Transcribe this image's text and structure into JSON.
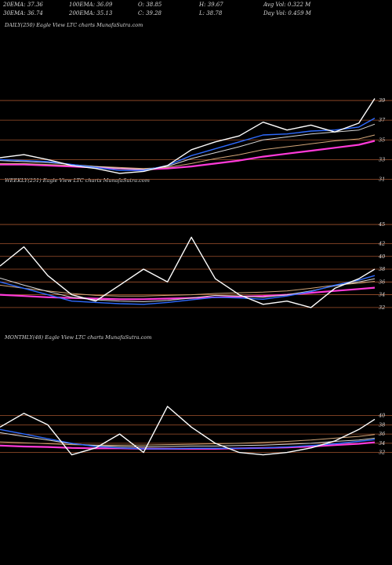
{
  "header": {
    "row1": [
      {
        "label": "20EMA: 37.36"
      },
      {
        "label": "100EMA: 36.09"
      },
      {
        "label": "O: 38.85"
      },
      {
        "label": "H: 39.67"
      },
      {
        "label": "Avg Vol: 0.322  M"
      }
    ],
    "row2": [
      {
        "label": "30EMA: 36.74"
      },
      {
        "label": "200EMA: 35.13"
      },
      {
        "label": "C: 39.28"
      },
      {
        "label": "L: 38.78"
      },
      {
        "label": "Day Vol: 0.459 M"
      }
    ]
  },
  "colors": {
    "background": "#000000",
    "grid": "#a0522d",
    "price": "#ffffff",
    "ema_fast": "#2e6bff",
    "ema_mid": "#d8d8d8",
    "ema_slow": "#d2a679",
    "ema_long": "#ff3ad9"
  },
  "chart_data": [
    {
      "type": "line",
      "title": "DAILY(250) Eagle  View  LTC charts MunafaSutra.com",
      "yticks": [
        "39",
        "37",
        "35",
        "33",
        "31"
      ],
      "ytick_values": [
        39,
        37,
        35,
        33,
        31
      ],
      "ylim": [
        30.4,
        39.8
      ],
      "x": [
        0,
        30,
        60,
        90,
        120,
        150,
        180,
        210,
        240,
        270,
        300,
        330,
        360,
        390,
        420,
        450,
        470
      ],
      "series": [
        {
          "key": "price",
          "values": [
            33.2,
            33.5,
            33.0,
            32.4,
            32.1,
            31.6,
            31.8,
            32.4,
            34.0,
            34.8,
            35.4,
            36.8,
            36.0,
            36.5,
            35.8,
            36.7,
            39.2
          ]
        },
        {
          "key": "ema_fast",
          "values": [
            33.0,
            32.9,
            32.8,
            32.5,
            32.2,
            31.9,
            31.9,
            32.4,
            33.4,
            34.1,
            34.8,
            35.5,
            35.6,
            35.9,
            36.0,
            36.3,
            37.2
          ]
        },
        {
          "key": "ema_mid",
          "values": [
            32.9,
            32.8,
            32.7,
            32.5,
            32.3,
            32.1,
            32.0,
            32.3,
            33.1,
            33.7,
            34.3,
            35.0,
            35.3,
            35.6,
            35.8,
            36.0,
            36.6
          ]
        },
        {
          "key": "ema_slow",
          "values": [
            32.6,
            32.6,
            32.5,
            32.4,
            32.3,
            32.2,
            32.1,
            32.2,
            32.6,
            33.1,
            33.5,
            34.0,
            34.3,
            34.6,
            34.9,
            35.1,
            35.5
          ]
        },
        {
          "key": "ema_long",
          "values": [
            32.5,
            32.5,
            32.4,
            32.3,
            32.2,
            32.1,
            32.0,
            32.1,
            32.3,
            32.6,
            32.9,
            33.3,
            33.6,
            33.9,
            34.2,
            34.5,
            34.9
          ]
        }
      ]
    },
    {
      "type": "line",
      "title": "WEEKLY(251) Eagle  View  LTC charts MunafaSutra.com",
      "yticks": [
        "45",
        "42",
        "40",
        "38",
        "36",
        "34",
        "32"
      ],
      "ytick_values": [
        45,
        42,
        40,
        38,
        36,
        34,
        32
      ],
      "ylim": [
        31.0,
        45.5
      ],
      "x": [
        0,
        30,
        60,
        90,
        120,
        150,
        180,
        210,
        240,
        270,
        300,
        330,
        360,
        390,
        420,
        450,
        470
      ],
      "series": [
        {
          "key": "price",
          "values": [
            38.5,
            41.5,
            37.0,
            34.0,
            33.0,
            35.5,
            38.0,
            36.0,
            43.0,
            36.5,
            34.0,
            32.5,
            33.0,
            32.0,
            35.0,
            36.5,
            38.0
          ]
        },
        {
          "key": "ema_fast",
          "values": [
            36.0,
            35.0,
            34.0,
            33.0,
            32.8,
            32.6,
            32.5,
            32.8,
            33.2,
            33.6,
            33.5,
            33.3,
            33.8,
            34.5,
            35.5,
            36.3,
            37.0
          ]
        },
        {
          "key": "ema_mid",
          "values": [
            36.6,
            35.5,
            34.5,
            33.6,
            33.2,
            33.0,
            32.9,
            33.1,
            33.5,
            33.9,
            33.8,
            33.6,
            34.0,
            34.6,
            35.4,
            36.0,
            36.5
          ]
        },
        {
          "key": "ema_slow",
          "values": [
            35.5,
            35.0,
            34.6,
            34.2,
            33.9,
            33.8,
            33.8,
            33.9,
            34.0,
            34.2,
            34.3,
            34.4,
            34.6,
            35.0,
            35.5,
            35.8,
            36.1
          ]
        },
        {
          "key": "ema_long",
          "values": [
            34.0,
            33.8,
            33.6,
            33.5,
            33.4,
            33.3,
            33.3,
            33.4,
            33.5,
            33.6,
            33.7,
            33.8,
            34.0,
            34.3,
            34.6,
            34.9,
            35.1
          ]
        }
      ]
    },
    {
      "type": "line",
      "title": "MONTHLY(48) Eagle  View  LTC charts MunafaSutra.com",
      "yticks": [
        "40",
        "38",
        "36",
        "34",
        "32"
      ],
      "ytick_values": [
        40,
        38,
        36,
        34,
        32
      ],
      "ylim": [
        27.0,
        43.0
      ],
      "x": [
        0,
        30,
        60,
        90,
        120,
        150,
        180,
        210,
        240,
        270,
        300,
        330,
        360,
        390,
        420,
        450,
        470
      ],
      "series": [
        {
          "key": "price",
          "values": [
            37.5,
            40.5,
            38.0,
            31.5,
            33.0,
            36.0,
            32.0,
            42.0,
            37.5,
            34.0,
            32.0,
            31.5,
            32.0,
            33.0,
            34.5,
            37.0,
            39.2
          ]
        },
        {
          "key": "ema_fast",
          "values": [
            37.0,
            36.0,
            35.0,
            34.0,
            33.3,
            33.0,
            32.8,
            32.8,
            32.9,
            32.9,
            32.9,
            33.0,
            33.2,
            33.5,
            33.9,
            34.4,
            34.8
          ]
        },
        {
          "key": "ema_mid",
          "values": [
            36.3,
            35.5,
            34.7,
            33.9,
            33.5,
            33.3,
            33.2,
            33.3,
            33.4,
            33.4,
            33.5,
            33.6,
            33.8,
            34.0,
            34.4,
            34.7,
            35.1
          ]
        },
        {
          "key": "ema_slow",
          "values": [
            34.3,
            34.1,
            33.9,
            33.7,
            33.6,
            33.6,
            33.6,
            33.7,
            33.8,
            33.9,
            34.0,
            34.2,
            34.4,
            34.7,
            35.1,
            35.5,
            35.9
          ]
        },
        {
          "key": "ema_long",
          "values": [
            33.5,
            33.3,
            33.2,
            33.0,
            32.9,
            32.9,
            32.8,
            32.8,
            32.8,
            32.8,
            32.9,
            33.0,
            33.1,
            33.3,
            33.6,
            33.9,
            34.2
          ]
        }
      ]
    }
  ]
}
